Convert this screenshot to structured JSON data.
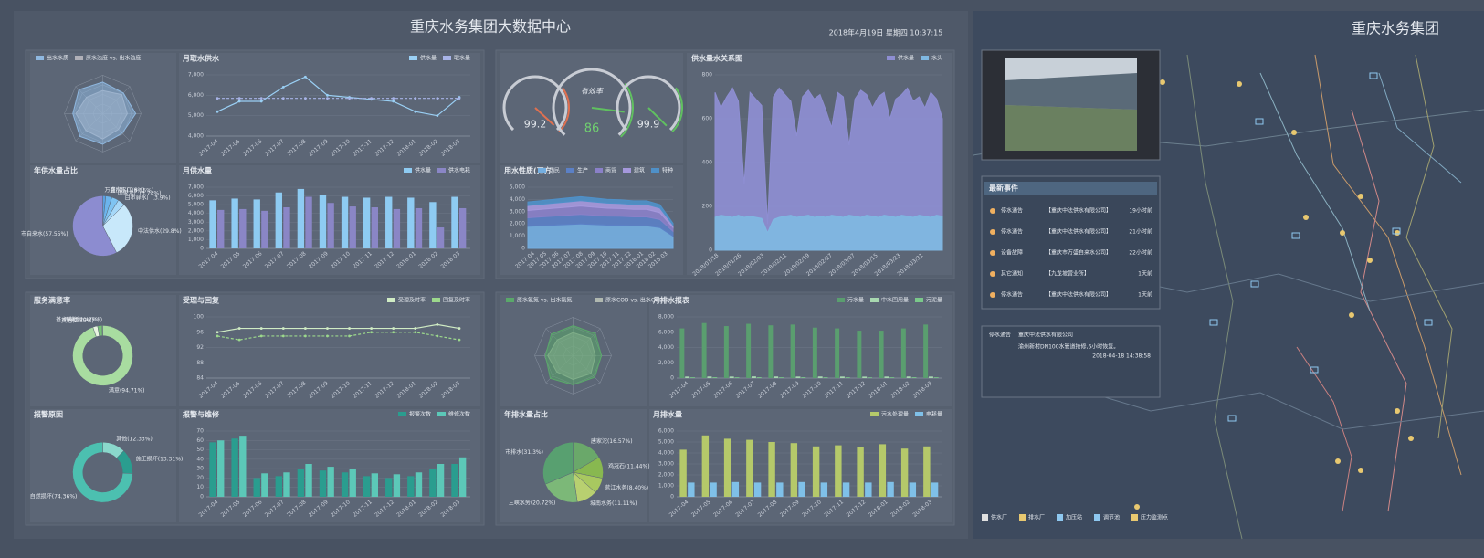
{
  "header": {
    "title": "重庆水务集团大数据中心",
    "datetime": "2018年4月19日 星期四 10:37:15"
  },
  "map": {
    "title": "重庆水务集团",
    "events_title": "最新事件",
    "events": [
      [
        "停水通告",
        "【重庆中法供水有限公司】",
        "19小时前"
      ],
      [
        "停水通告",
        "【重庆中法供水有限公司】",
        "21小时前"
      ],
      [
        "设备故障",
        "【重庆市万盛自来水公司】",
        "22小时前"
      ],
      [
        "其它通知",
        "【九龙坡营业所】",
        "1天前"
      ],
      [
        "停水通告",
        "【重庆中法供水有限公司】",
        "1天前"
      ]
    ],
    "notice": {
      "type": "停水通告",
      "company": "重庆中法供水有限公司",
      "text": "渝州新村DN100水管道抢修,6小时恢复。",
      "time": "2018-04-18 14:38:58"
    },
    "legend": [
      "供水厂",
      "排水厂",
      "加压站",
      "调节池",
      "压力监测点"
    ]
  },
  "chart_data": [
    {
      "type": "radar",
      "categories": [
        null,
        null,
        null,
        null,
        null,
        null,
        null,
        null
      ],
      "ylim": [
        0,
        100
      ],
      "series": [
        {
          "name": "出水水质",
          "color": "#8fb8e0",
          "values": [
            82,
            76,
            86,
            72,
            80,
            84,
            78,
            88
          ]
        },
        {
          "name": "原水浊度 vs. 出水浊度",
          "color": "#b0b0b8",
          "values": [
            60,
            70,
            64,
            58,
            66,
            62,
            70,
            60
          ]
        }
      ]
    },
    {
      "type": "line",
      "title": "月取水供水",
      "categories": [
        "2017-04",
        "2017-05",
        "2017-06",
        "2017-07",
        "2017-08",
        "2017-09",
        "2017-10",
        "2017-11",
        "2017-12",
        "2018-01",
        "2018-02",
        "2018-03"
      ],
      "ylim": [
        4000,
        7000
      ],
      "yticks": [
        {
          "value": 4000,
          "label": "4,000"
        },
        {
          "value": 5000,
          "label": "5,000"
        },
        {
          "value": 6000,
          "label": "6,000"
        },
        {
          "value": 7000,
          "label": "7,000"
        }
      ],
      "series": [
        {
          "name": "供水量",
          "color": "#9ad0f5",
          "values": [
            5200,
            5700,
            5700,
            6400,
            6900,
            6000,
            5900,
            5800,
            5700,
            5200,
            5000,
            5900
          ]
        },
        {
          "name": "取水量",
          "color": "#a8b4e8",
          "values": [
            5850,
            5850,
            5850,
            5850,
            5850,
            5850,
            5850,
            5850,
            5850,
            5850,
            5850,
            5850
          ]
        }
      ]
    },
    {
      "type": "pie",
      "title": "年供水量占比",
      "hole": false,
      "categories": [
        "万盛水厂(1.6%)",
        "鹿门水厂(3.35%)",
        "国家水厂(3.74%)",
        "白市驿水厂(3.9%)",
        "中法供水(29.8%)",
        "市自来水(57.55%)"
      ],
      "values": [
        1.6,
        3.35,
        3.74,
        3.9,
        29.8,
        57.55
      ],
      "colors": [
        "#5aa0e0",
        "#6cb4ec",
        "#7fc4f2",
        "#a6d8f8",
        "#c8e8fa",
        "#8c8cd0"
      ]
    },
    {
      "type": "bar",
      "title": "月供水量",
      "categories": [
        "2017-04",
        "2017-05",
        "2017-06",
        "2017-07",
        "2017-08",
        "2017-09",
        "2017-10",
        "2017-11",
        "2017-12",
        "2018-01",
        "2018-02",
        "2018-03"
      ],
      "ylim": [
        0,
        7000
      ],
      "yticks": [
        0,
        {
          "value": 1000,
          "label": "1,000"
        },
        {
          "value": 2000,
          "label": "2,000"
        },
        {
          "value": 3000,
          "label": "3,000"
        },
        {
          "value": 4000,
          "label": "4,000"
        },
        {
          "value": 5000,
          "label": "5,000"
        },
        {
          "value": 6000,
          "label": "6,000"
        },
        {
          "value": 7000,
          "label": "7,000"
        }
      ],
      "series": [
        {
          "name": "供水量",
          "color": "#8ecbf2",
          "values": [
            5500,
            5700,
            5600,
            6400,
            6800,
            6100,
            5900,
            5800,
            5900,
            5800,
            5300,
            5900
          ]
        },
        {
          "name": "供水电耗",
          "color": "#8a86c6",
          "values": [
            4400,
            4500,
            4300,
            4700,
            5900,
            5200,
            4800,
            4700,
            4500,
            4600,
            2400,
            4600
          ]
        }
      ]
    },
    {
      "type": "gauge",
      "label": "有效率",
      "values": [
        99.2,
        86,
        99.9
      ],
      "ylim": [
        0,
        100
      ],
      "colors": [
        "#e07050",
        "#60c060",
        "#60c060"
      ]
    },
    {
      "type": "area",
      "title": "用水性质(万方)",
      "stacked": true,
      "categories": [
        "2017-04",
        "2017-05",
        "2017-06",
        "2017-07",
        "2017-08",
        "2017-09",
        "2017-10",
        "2017-11",
        "2017-12",
        "2018-01",
        "2018-02",
        "2018-03"
      ],
      "ylim": [
        0,
        5000
      ],
      "yticks": [
        0,
        {
          "value": 1000,
          "label": "1,000"
        },
        {
          "value": 2000,
          "label": "2,000"
        },
        {
          "value": 3000,
          "label": "3,000"
        },
        {
          "value": 4000,
          "label": "4,000"
        },
        {
          "value": 5000,
          "label": "5,000"
        }
      ],
      "series": [
        {
          "name": "居民",
          "color": "#74aee0",
          "values": [
            1800,
            1850,
            1900,
            1950,
            2000,
            1950,
            1900,
            1900,
            1850,
            1850,
            1700,
            1000
          ]
        },
        {
          "name": "生产",
          "color": "#5b80c6",
          "values": [
            700,
            720,
            740,
            760,
            780,
            760,
            740,
            730,
            720,
            720,
            660,
            400
          ]
        },
        {
          "name": "商贸",
          "color": "#8a80c8",
          "values": [
            600,
            620,
            640,
            660,
            680,
            660,
            640,
            630,
            620,
            620,
            560,
            300
          ]
        },
        {
          "name": "建筑",
          "color": "#a598dc",
          "values": [
            400,
            410,
            420,
            430,
            440,
            430,
            420,
            410,
            400,
            400,
            380,
            200
          ]
        },
        {
          "name": "特种",
          "color": "#4f90c8",
          "values": [
            300,
            300,
            310,
            320,
            330,
            320,
            310,
            300,
            300,
            300,
            280,
            150
          ]
        }
      ]
    },
    {
      "type": "area",
      "title": "供水量水关系图",
      "stacked": false,
      "categories": [
        "2018/01/18",
        null,
        null,
        null,
        "2018/01/26",
        null,
        null,
        null,
        "2018/02/03",
        null,
        null,
        null,
        "2018/02/11",
        null,
        null,
        null,
        "2018/02/19",
        null,
        null,
        null,
        "2018/02/27",
        null,
        null,
        null,
        "2018/03/07",
        null,
        null,
        null,
        "2018/03/15",
        null,
        null,
        null,
        "2018/03/23",
        null,
        null,
        null,
        "2018/03/31",
        null,
        null,
        null
      ],
      "ylim": [
        0,
        800
      ],
      "yticks": [
        0,
        200,
        400,
        600,
        800
      ],
      "series": [
        {
          "name": "供水量",
          "color": "#8e8ed2",
          "values": [
            720,
            650,
            700,
            740,
            680,
            300,
            720,
            690,
            660,
            120,
            700,
            740,
            710,
            680,
            520,
            700,
            730,
            690,
            710,
            640,
            560,
            720,
            700,
            480,
            690,
            730,
            710,
            650,
            700,
            720,
            600,
            690,
            710,
            740,
            680,
            700,
            650,
            720,
            690,
            600
          ]
        },
        {
          "name": "水头",
          "color": "#7fb8e2",
          "values": [
            150,
            160,
            155,
            150,
            160,
            150,
            155,
            150,
            145,
            80,
            140,
            150,
            155,
            160,
            150,
            155,
            160,
            150,
            155,
            150,
            160,
            155,
            150,
            160,
            155,
            150,
            160,
            155,
            150,
            160,
            155,
            150,
            160,
            155,
            150,
            160,
            155,
            150,
            160,
            155
          ]
        }
      ]
    },
    {
      "type": "pie",
      "title": "服务满意率",
      "hole": true,
      "categories": [
        "满意(94.71%)",
        "其他(2.55%)",
        "基本满意(2.47%)",
        "不满意(0.27%)"
      ],
      "values": [
        94.71,
        2.55,
        2.47,
        0.27
      ],
      "colors": [
        "#a8dca0",
        "#e8f4e0",
        "#78c078",
        "#d0ecc8"
      ]
    },
    {
      "type": "line",
      "title": "受理与回复",
      "categories": [
        "2017-04",
        "2017-05",
        "2017-06",
        "2017-07",
        "2017-08",
        "2017-09",
        "2017-10",
        "2017-11",
        "2017-12",
        "2018-01",
        "2018-02",
        "2018-03"
      ],
      "ylim": [
        84,
        100
      ],
      "yticks": [
        84,
        88,
        92,
        96,
        100
      ],
      "series": [
        {
          "name": "受理及时率",
          "color": "#d0ecc4",
          "values": [
            96,
            97,
            97,
            97,
            97,
            97,
            97,
            97,
            97,
            97,
            98,
            97
          ]
        },
        {
          "name": "回复及时率",
          "color": "#9cd88c",
          "values": [
            95,
            94,
            95,
            95,
            95,
            95,
            95,
            96,
            96,
            96,
            95,
            94
          ]
        }
      ]
    },
    {
      "type": "pie",
      "title": "报警原因",
      "hole": true,
      "categories": [
        "其他(12.33%)",
        "施工损坏(13.31%)",
        "自然损坏(74.36%)"
      ],
      "values": [
        12.33,
        13.31,
        74.36
      ],
      "colors": [
        "#8ad8cc",
        "#2a9d8f",
        "#4cc0b0"
      ]
    },
    {
      "type": "bar",
      "title": "报警与维修",
      "categories": [
        "2017-04",
        "2017-05",
        "2017-06",
        "2017-07",
        "2017-08",
        "2017-09",
        "2017-10",
        "2017-11",
        "2017-12",
        "2018-01",
        "2018-02",
        "2018-03"
      ],
      "ylim": [
        0,
        70
      ],
      "yticks": [
        0,
        10,
        20,
        30,
        40,
        50,
        60,
        70
      ],
      "series": [
        {
          "name": "报警次数",
          "color": "#2a9d8f",
          "values": [
            58,
            62,
            20,
            22,
            30,
            28,
            26,
            22,
            20,
            22,
            30,
            35
          ]
        },
        {
          "name": "维修次数",
          "color": "#5cc8b8",
          "values": [
            60,
            65,
            25,
            26,
            35,
            32,
            30,
            25,
            24,
            26,
            35,
            42
          ]
        }
      ]
    },
    {
      "type": "radar",
      "categories": [
        null,
        null,
        null,
        null,
        null,
        null,
        null,
        null
      ],
      "ylim": [
        0,
        100
      ],
      "series": [
        {
          "name": "原水氨氮 vs. 出水氨氮",
          "color": "#5aa86a",
          "values": [
            78,
            82,
            74,
            80,
            76,
            84,
            72,
            80
          ]
        },
        {
          "name": "原水COD vs. 出水COD",
          "color": "#b0b8b0",
          "values": [
            60,
            64,
            58,
            66,
            62,
            60,
            66,
            58
          ]
        }
      ]
    },
    {
      "type": "bar",
      "title": "月排水报表",
      "categories": [
        "2017-04",
        "2017-05",
        "2017-06",
        "2017-07",
        "2017-08",
        "2017-09",
        "2017-10",
        "2017-11",
        "2017-12",
        "2018-01",
        "2018-02",
        "2018-03"
      ],
      "ylim": [
        0,
        8000
      ],
      "yticks": [
        0,
        {
          "value": 2000,
          "label": "2,000"
        },
        {
          "value": 4000,
          "label": "4,000"
        },
        {
          "value": 6000,
          "label": "6,000"
        },
        {
          "value": 8000,
          "label": "8,000"
        }
      ],
      "series": [
        {
          "name": "污水量",
          "color": "#5a9e6f",
          "values": [
            6500,
            7200,
            6800,
            7100,
            6900,
            7000,
            6600,
            6500,
            6200,
            6200,
            6500,
            7000
          ]
        },
        {
          "name": "中水回用量",
          "color": "#a8d8b0",
          "values": [
            200,
            210,
            200,
            220,
            210,
            200,
            210,
            200,
            190,
            200,
            210,
            200
          ]
        },
        {
          "name": "污泥量",
          "color": "#7ac88a",
          "values": [
            100,
            110,
            100,
            110,
            100,
            110,
            100,
            100,
            90,
            100,
            110,
            100
          ]
        }
      ]
    },
    {
      "type": "pie",
      "title": "年排水量占比",
      "hole": false,
      "categories": [
        "唐家沱(16.57%)",
        "鸡冠石(11.44%)",
        "蓝江水务(8.40%)",
        "城南水务(11.11%)",
        "三峡水务(20.72%)",
        "市排水(31.3%)"
      ],
      "values": [
        16.57,
        11.44,
        8.4,
        11.11,
        20.72,
        31.3
      ],
      "colors": [
        "#6aa86a",
        "#88b850",
        "#a8c860",
        "#b8d070",
        "#7cb878",
        "#58a070"
      ]
    },
    {
      "type": "bar",
      "title": "月排水量",
      "categories": [
        "2017-04",
        "2017-05",
        "2017-06",
        "2017-07",
        "2017-08",
        "2017-09",
        "2017-10",
        "2017-11",
        "2017-12",
        "2018-01",
        "2018-02",
        "2018-03"
      ],
      "ylim": [
        0,
        6000
      ],
      "yticks": [
        0,
        {
          "value": 1000,
          "label": "1,000"
        },
        {
          "value": 2000,
          "label": "2,000"
        },
        {
          "value": 3000,
          "label": "3,000"
        },
        {
          "value": 4000,
          "label": "4,000"
        },
        {
          "value": 5000,
          "label": "5,000"
        },
        {
          "value": 6000,
          "label": "6,000"
        }
      ],
      "series": [
        {
          "name": "污水处理量",
          "color": "#b5c96a",
          "values": [
            4300,
            5600,
            5300,
            5200,
            5000,
            4900,
            4600,
            4700,
            4500,
            4800,
            4400,
            4600
          ]
        },
        {
          "name": "电耗量",
          "color": "#7fc0e8",
          "values": [
            1300,
            1300,
            1350,
            1300,
            1300,
            1350,
            1300,
            1300,
            1300,
            1350,
            1300,
            1300
          ]
        }
      ]
    }
  ]
}
